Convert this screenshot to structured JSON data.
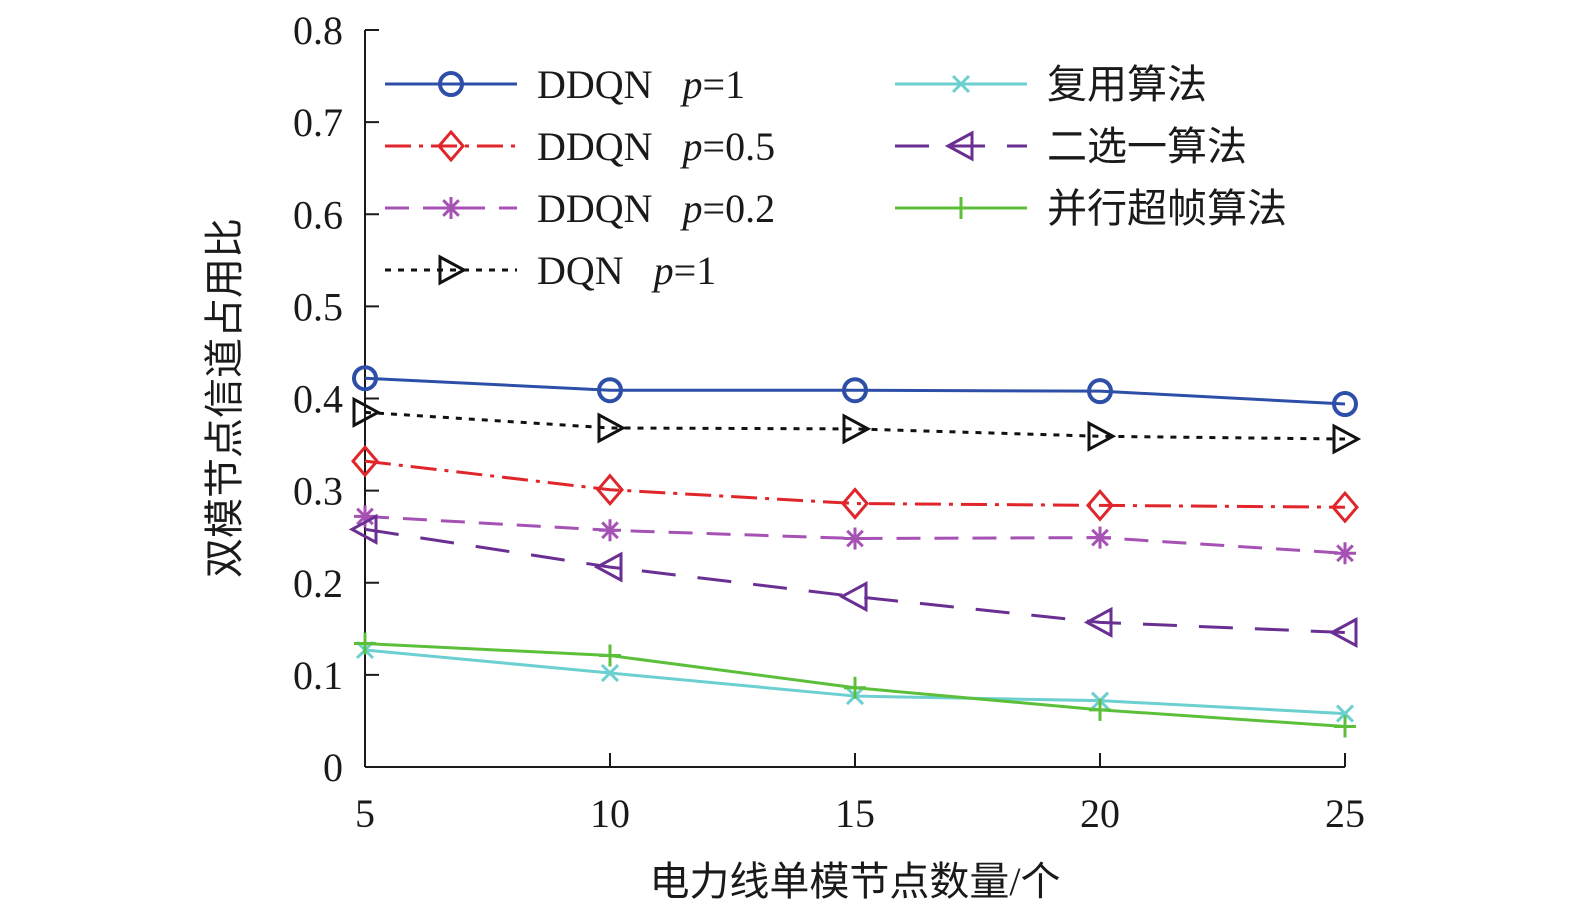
{
  "chart_data": {
    "type": "line",
    "title": "",
    "xlabel": "电力线单模节点数量/个",
    "ylabel": "双模节点信道占用比",
    "x": [
      5,
      10,
      15,
      20,
      25
    ],
    "xlim": [
      5,
      25
    ],
    "ylim": [
      0,
      0.8
    ],
    "x_ticks": [
      5,
      10,
      15,
      20,
      25
    ],
    "y_ticks": [
      0,
      0.1,
      0.2,
      0.3,
      0.4,
      0.5,
      0.6,
      0.7,
      0.8
    ],
    "x_tick_labels": [
      "5",
      "10",
      "15",
      "20",
      "25"
    ],
    "y_tick_labels": [
      "0",
      "0.1",
      "0.2",
      "0.3",
      "0.4",
      "0.5",
      "0.6",
      "0.7",
      "0.8"
    ],
    "grid": false,
    "legend_position": "top",
    "series": [
      {
        "name": "DDQN",
        "param": "p",
        "param_value": "=1",
        "color": "#2d4fa8",
        "dash": "solid",
        "marker": "circle",
        "values": [
          0.422,
          0.409,
          0.409,
          0.408,
          0.394
        ]
      },
      {
        "name": "DDQN",
        "param": "p",
        "param_value": "=0.5",
        "color": "#e0262b",
        "dash": "dashdot",
        "marker": "diamond",
        "values": [
          0.332,
          0.301,
          0.286,
          0.284,
          0.282
        ]
      },
      {
        "name": "DDQN",
        "param": "p",
        "param_value": "=0.2",
        "color": "#a652b5",
        "dash": "dashed",
        "marker": "asterisk",
        "values": [
          0.272,
          0.257,
          0.248,
          0.249,
          0.232
        ]
      },
      {
        "name": "DQN",
        "param": "p",
        "param_value": "=1",
        "color": "#111111",
        "dash": "dotted",
        "marker": "triangle-right",
        "values": [
          0.385,
          0.368,
          0.367,
          0.359,
          0.356
        ]
      },
      {
        "name": "复用算法",
        "param": "",
        "param_value": "",
        "color": "#6ccfd0",
        "dash": "solid",
        "marker": "x",
        "values": [
          0.127,
          0.102,
          0.077,
          0.072,
          0.058
        ]
      },
      {
        "name": "二选一算法",
        "param": "",
        "param_value": "",
        "color": "#6a2f92",
        "dash": "longdash",
        "marker": "triangle-left",
        "values": [
          0.258,
          0.217,
          0.185,
          0.157,
          0.146
        ]
      },
      {
        "name": "并行超帧算法",
        "param": "",
        "param_value": "",
        "color": "#5cbf3a",
        "dash": "solid",
        "marker": "plus",
        "values": [
          0.134,
          0.121,
          0.086,
          0.062,
          0.044
        ]
      }
    ]
  }
}
